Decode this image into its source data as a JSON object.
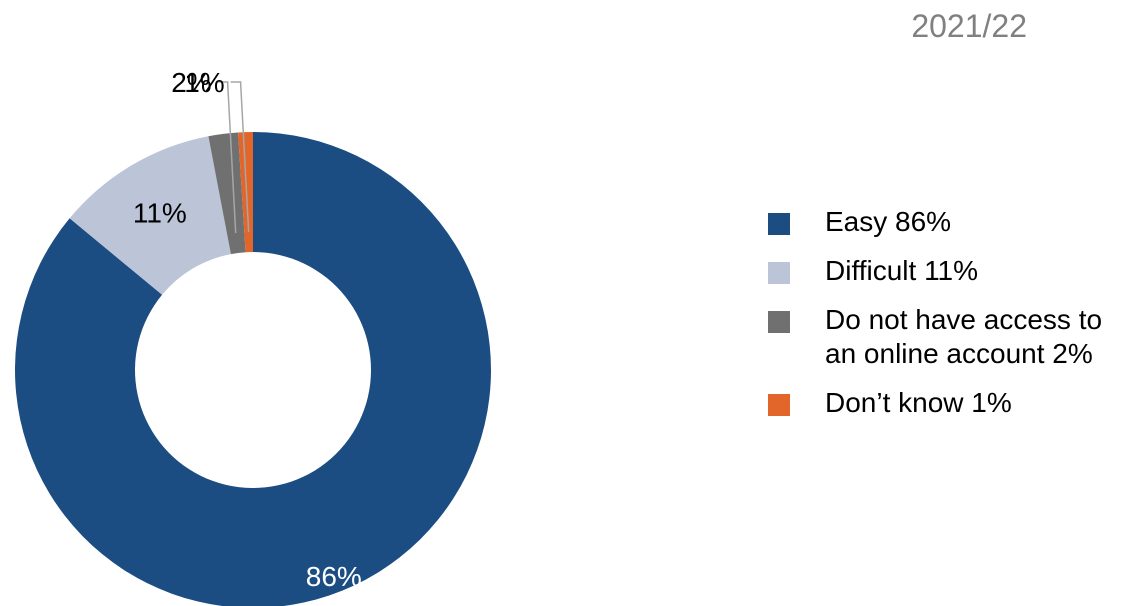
{
  "title": "2021/22",
  "chart_data": {
    "type": "pie",
    "title": "2021/22",
    "variant": "donut",
    "slices": [
      {
        "name": "Easy 86%",
        "value": 86,
        "label": "86%",
        "color": "#1b4d83",
        "label_color": "#ffffff"
      },
      {
        "name": "Difficult 11%",
        "value": 11,
        "label": "11%",
        "color": "#bcc5d8",
        "label_color": "#000000"
      },
      {
        "name": "Do not have access to an online account 2%",
        "value": 2,
        "label": "2%",
        "color": "#707070",
        "label_color": "#000000"
      },
      {
        "name": "Don’t know 1%",
        "value": 1,
        "label": "1%",
        "color": "#e2662a",
        "label_color": "#000000"
      }
    ],
    "legend_position": "right"
  },
  "leader_color": "#a6a6a6"
}
